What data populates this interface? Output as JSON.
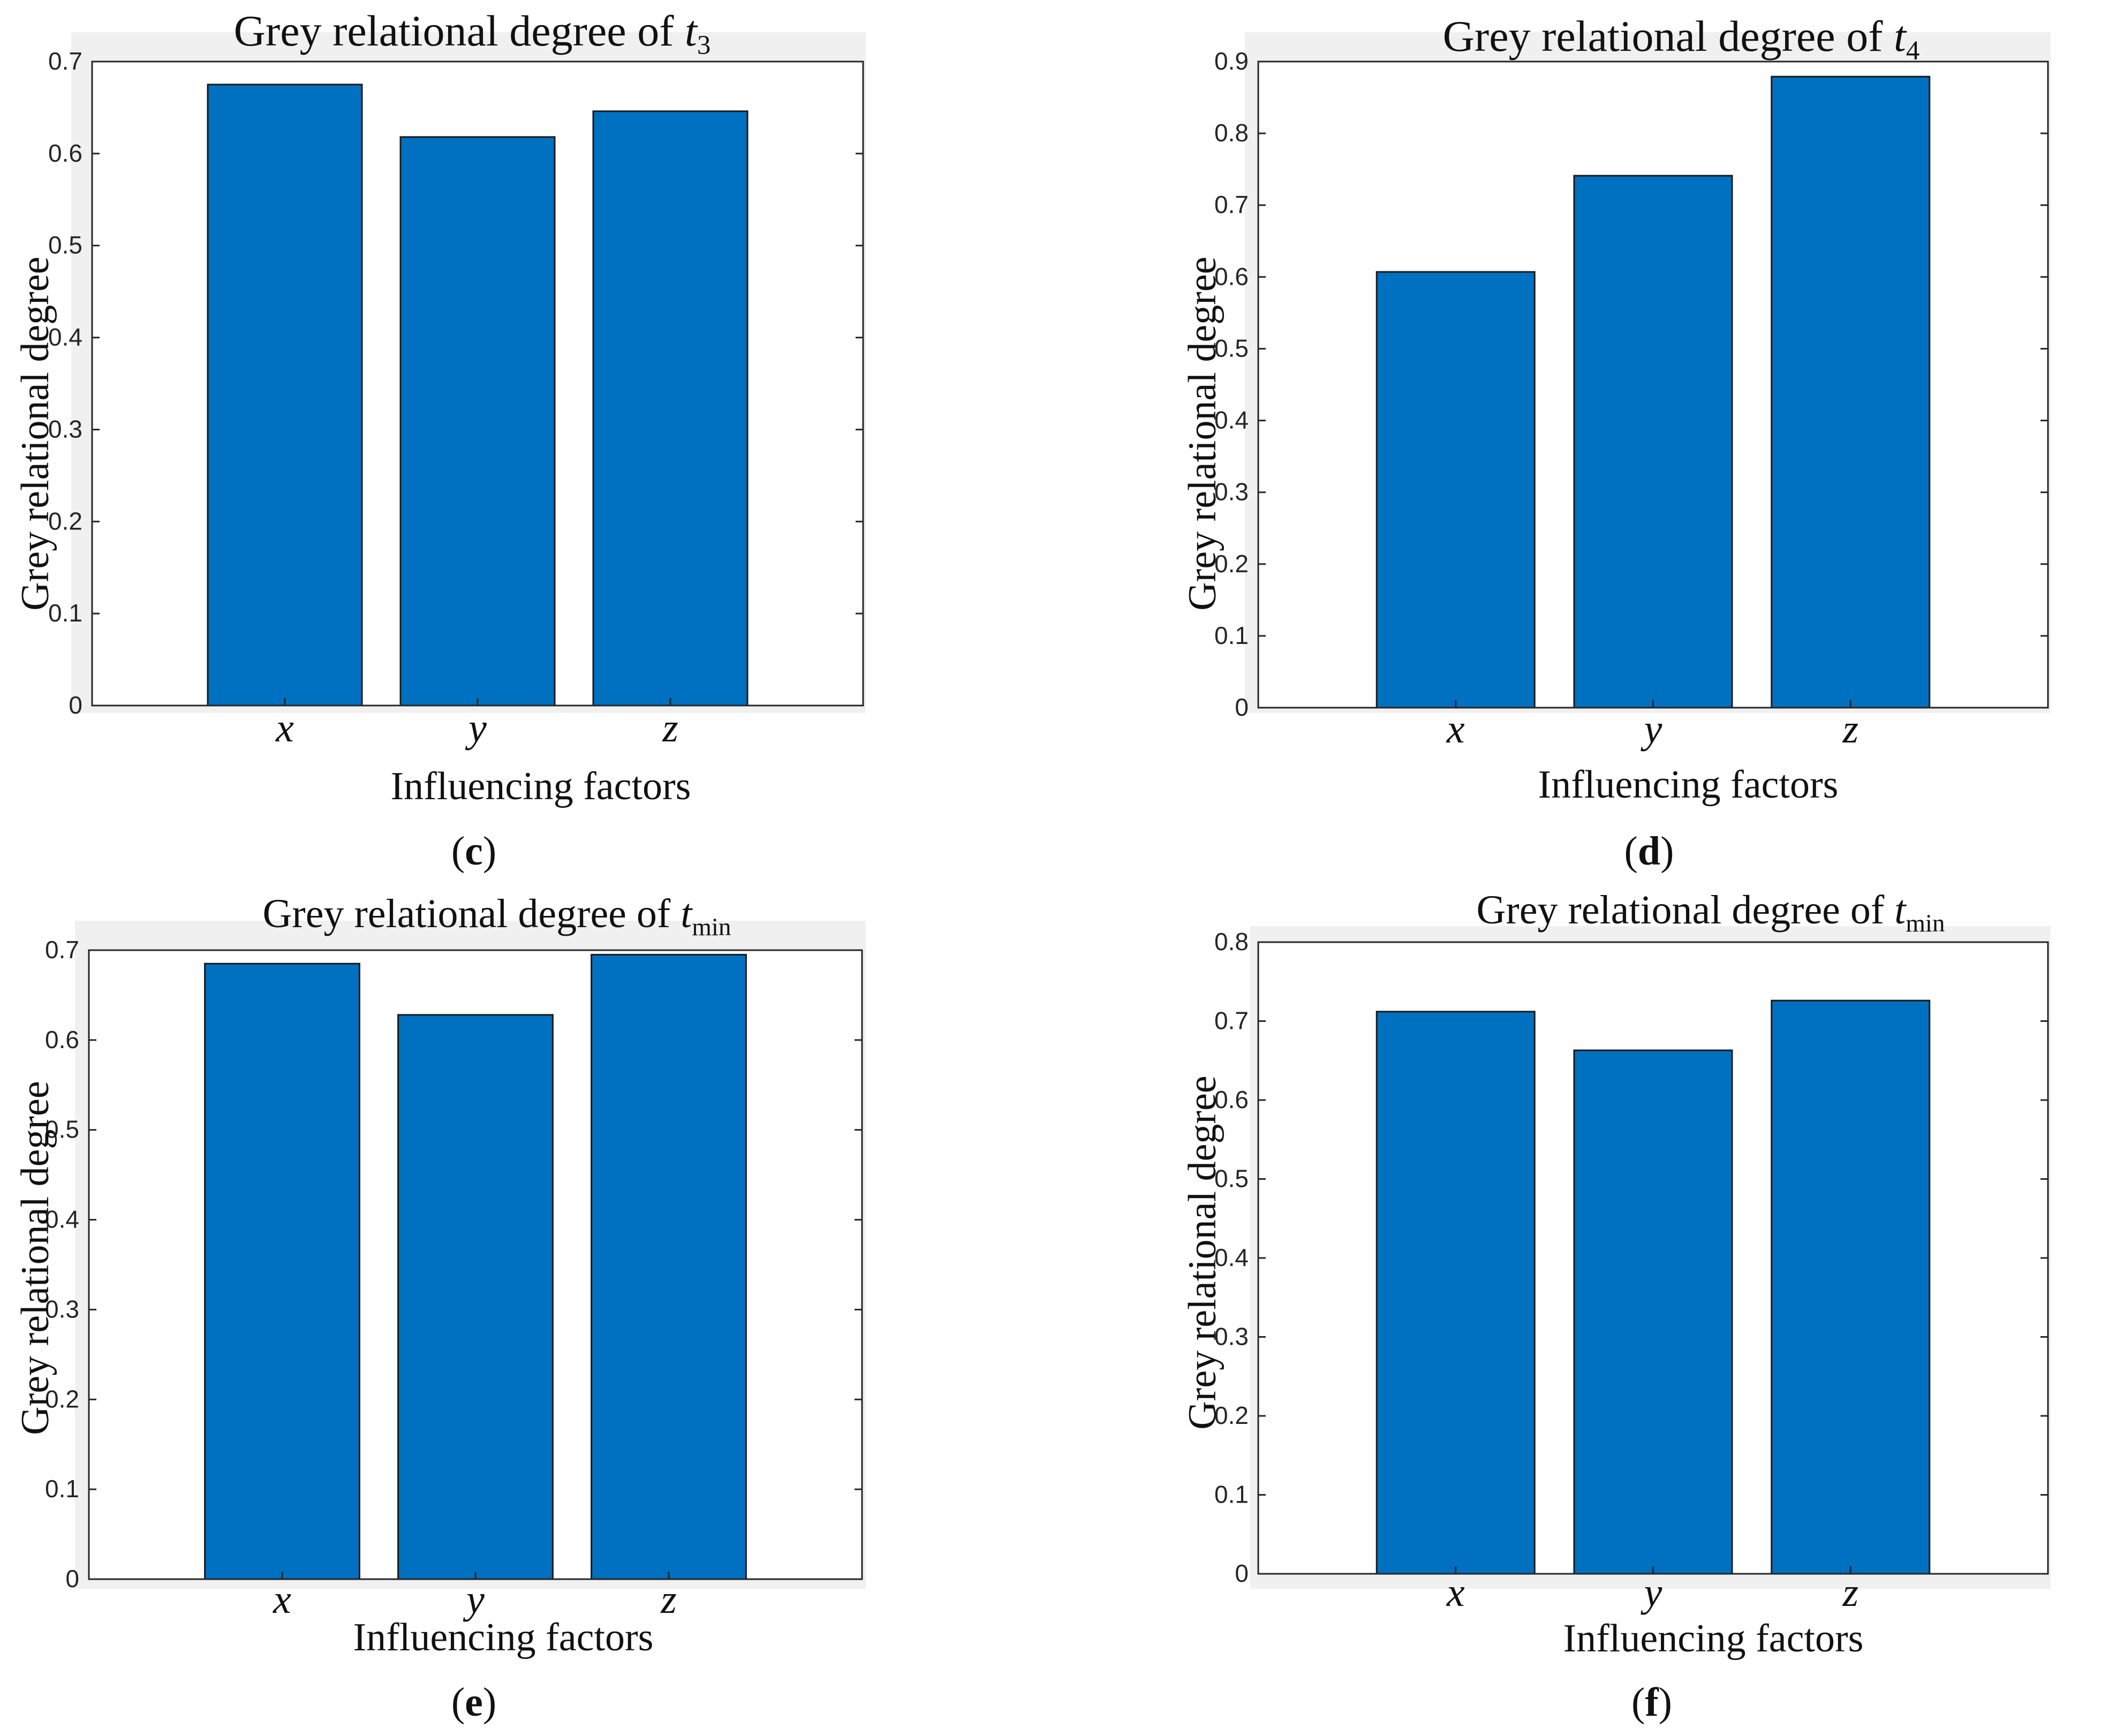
{
  "figure": {
    "colors": {
      "bar": "#0070C0",
      "bar_edge": "#1a1a1a",
      "axes_bg": "#ffffff",
      "panel_bg": "#f0f0f0",
      "axis": "#262626"
    }
  },
  "chart_data": [
    {
      "id": "c",
      "type": "bar",
      "title_main": "Grey relational degree of ",
      "title_var": "t",
      "title_sub": "3",
      "xlabel": "Influencing factors",
      "ylabel": "Grey relational degree",
      "panel_label": "c",
      "categories": [
        "x",
        "y",
        "z"
      ],
      "values": [
        0.675,
        0.618,
        0.646
      ],
      "ylim": [
        0,
        0.7
      ],
      "yticks": [
        0,
        0.1,
        0.2,
        0.3,
        0.4,
        0.5,
        0.6,
        0.7
      ],
      "ytick_labels": [
        "0",
        "0.1",
        "0.2",
        "0.3",
        "0.4",
        "0.5",
        "0.6",
        "0.7"
      ],
      "xlim": [
        0,
        4
      ]
    },
    {
      "id": "d",
      "type": "bar",
      "title_main": "Grey relational degree of ",
      "title_var": "t",
      "title_sub": "4",
      "xlabel": "Influencing factors",
      "ylabel": "Grey relational degree",
      "panel_label": "d",
      "categories": [
        "x",
        "y",
        "z"
      ],
      "values": [
        0.607,
        0.741,
        0.879
      ],
      "ylim": [
        0,
        0.9
      ],
      "yticks": [
        0,
        0.1,
        0.2,
        0.3,
        0.4,
        0.5,
        0.6,
        0.7,
        0.8,
        0.9
      ],
      "ytick_labels": [
        "0",
        "0.1",
        "0.2",
        "0.3",
        "0.4",
        "0.5",
        "0.6",
        "0.7",
        "0.8",
        "0.9"
      ],
      "xlim": [
        0,
        4
      ]
    },
    {
      "id": "e",
      "type": "bar",
      "title_main": "Grey relational degree of ",
      "title_var": "t",
      "title_sub": "min",
      "xlabel": "Influencing factors",
      "ylabel": "Grey relational degree",
      "panel_label": "e",
      "categories": [
        "x",
        "y",
        "z"
      ],
      "values": [
        0.685,
        0.628,
        0.695
      ],
      "ylim": [
        0,
        0.7
      ],
      "yticks": [
        0,
        0.1,
        0.2,
        0.3,
        0.4,
        0.5,
        0.6,
        0.7
      ],
      "ytick_labels": [
        "0",
        "0.1",
        "0.2",
        "0.3",
        "0.4",
        "0.5",
        "0.6",
        "0.7"
      ],
      "xlim": [
        0,
        4
      ]
    },
    {
      "id": "f",
      "type": "bar",
      "title_main": "Grey relational degree of ",
      "title_var": "t",
      "title_sub": "min",
      "xlabel": "Influencing factors",
      "ylabel": "Grey relational degree",
      "panel_label": "f",
      "categories": [
        "x",
        "y",
        "z"
      ],
      "values": [
        0.712,
        0.663,
        0.726
      ],
      "ylim": [
        0,
        0.8
      ],
      "yticks": [
        0,
        0.1,
        0.2,
        0.3,
        0.4,
        0.5,
        0.6,
        0.7,
        0.8
      ],
      "ytick_labels": [
        "0",
        "0.1",
        "0.2",
        "0.3",
        "0.4",
        "0.5",
        "0.6",
        "0.7",
        "0.8"
      ],
      "xlim": [
        0,
        4
      ]
    }
  ]
}
